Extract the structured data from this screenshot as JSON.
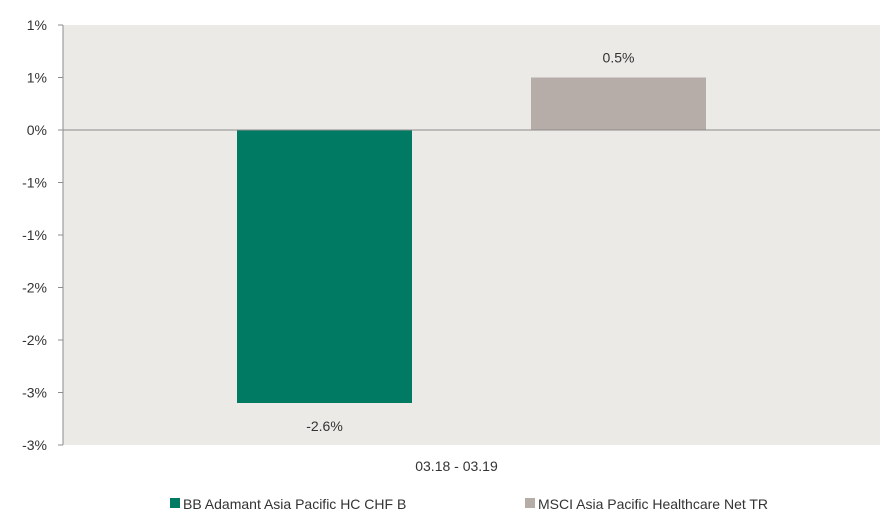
{
  "chart_data": {
    "type": "bar",
    "title": "",
    "xlabel": "",
    "ylabel": "",
    "categories": [
      "03.18 - 03.19"
    ],
    "series": [
      {
        "name": "BB Adamant Asia Pacific HC CHF B",
        "values": [
          -2.6
        ],
        "color": "#007A63"
      },
      {
        "name": "MSCI Asia Pacific Healthcare Net TR",
        "values": [
          0.5
        ],
        "color": "#B6ADA8"
      }
    ],
    "data_labels": [
      "-2.6%",
      "0.5%"
    ],
    "y_ticks": [
      {
        "value": 1.0,
        "label": "1%"
      },
      {
        "value": 0.5,
        "label": "1%"
      },
      {
        "value": 0.0,
        "label": "0%"
      },
      {
        "value": -0.5,
        "label": "-1%"
      },
      {
        "value": -1.0,
        "label": "-1%"
      },
      {
        "value": -1.5,
        "label": "-2%"
      },
      {
        "value": -2.0,
        "label": "-2%"
      },
      {
        "value": -2.5,
        "label": "-3%"
      },
      {
        "value": -3.0,
        "label": "-3%"
      }
    ],
    "ylim": [
      -3.0,
      1.0
    ],
    "grid": false,
    "legend_position": "bottom",
    "plot_background": "#ECEAE7",
    "axis_color": "#8C8C8C"
  }
}
